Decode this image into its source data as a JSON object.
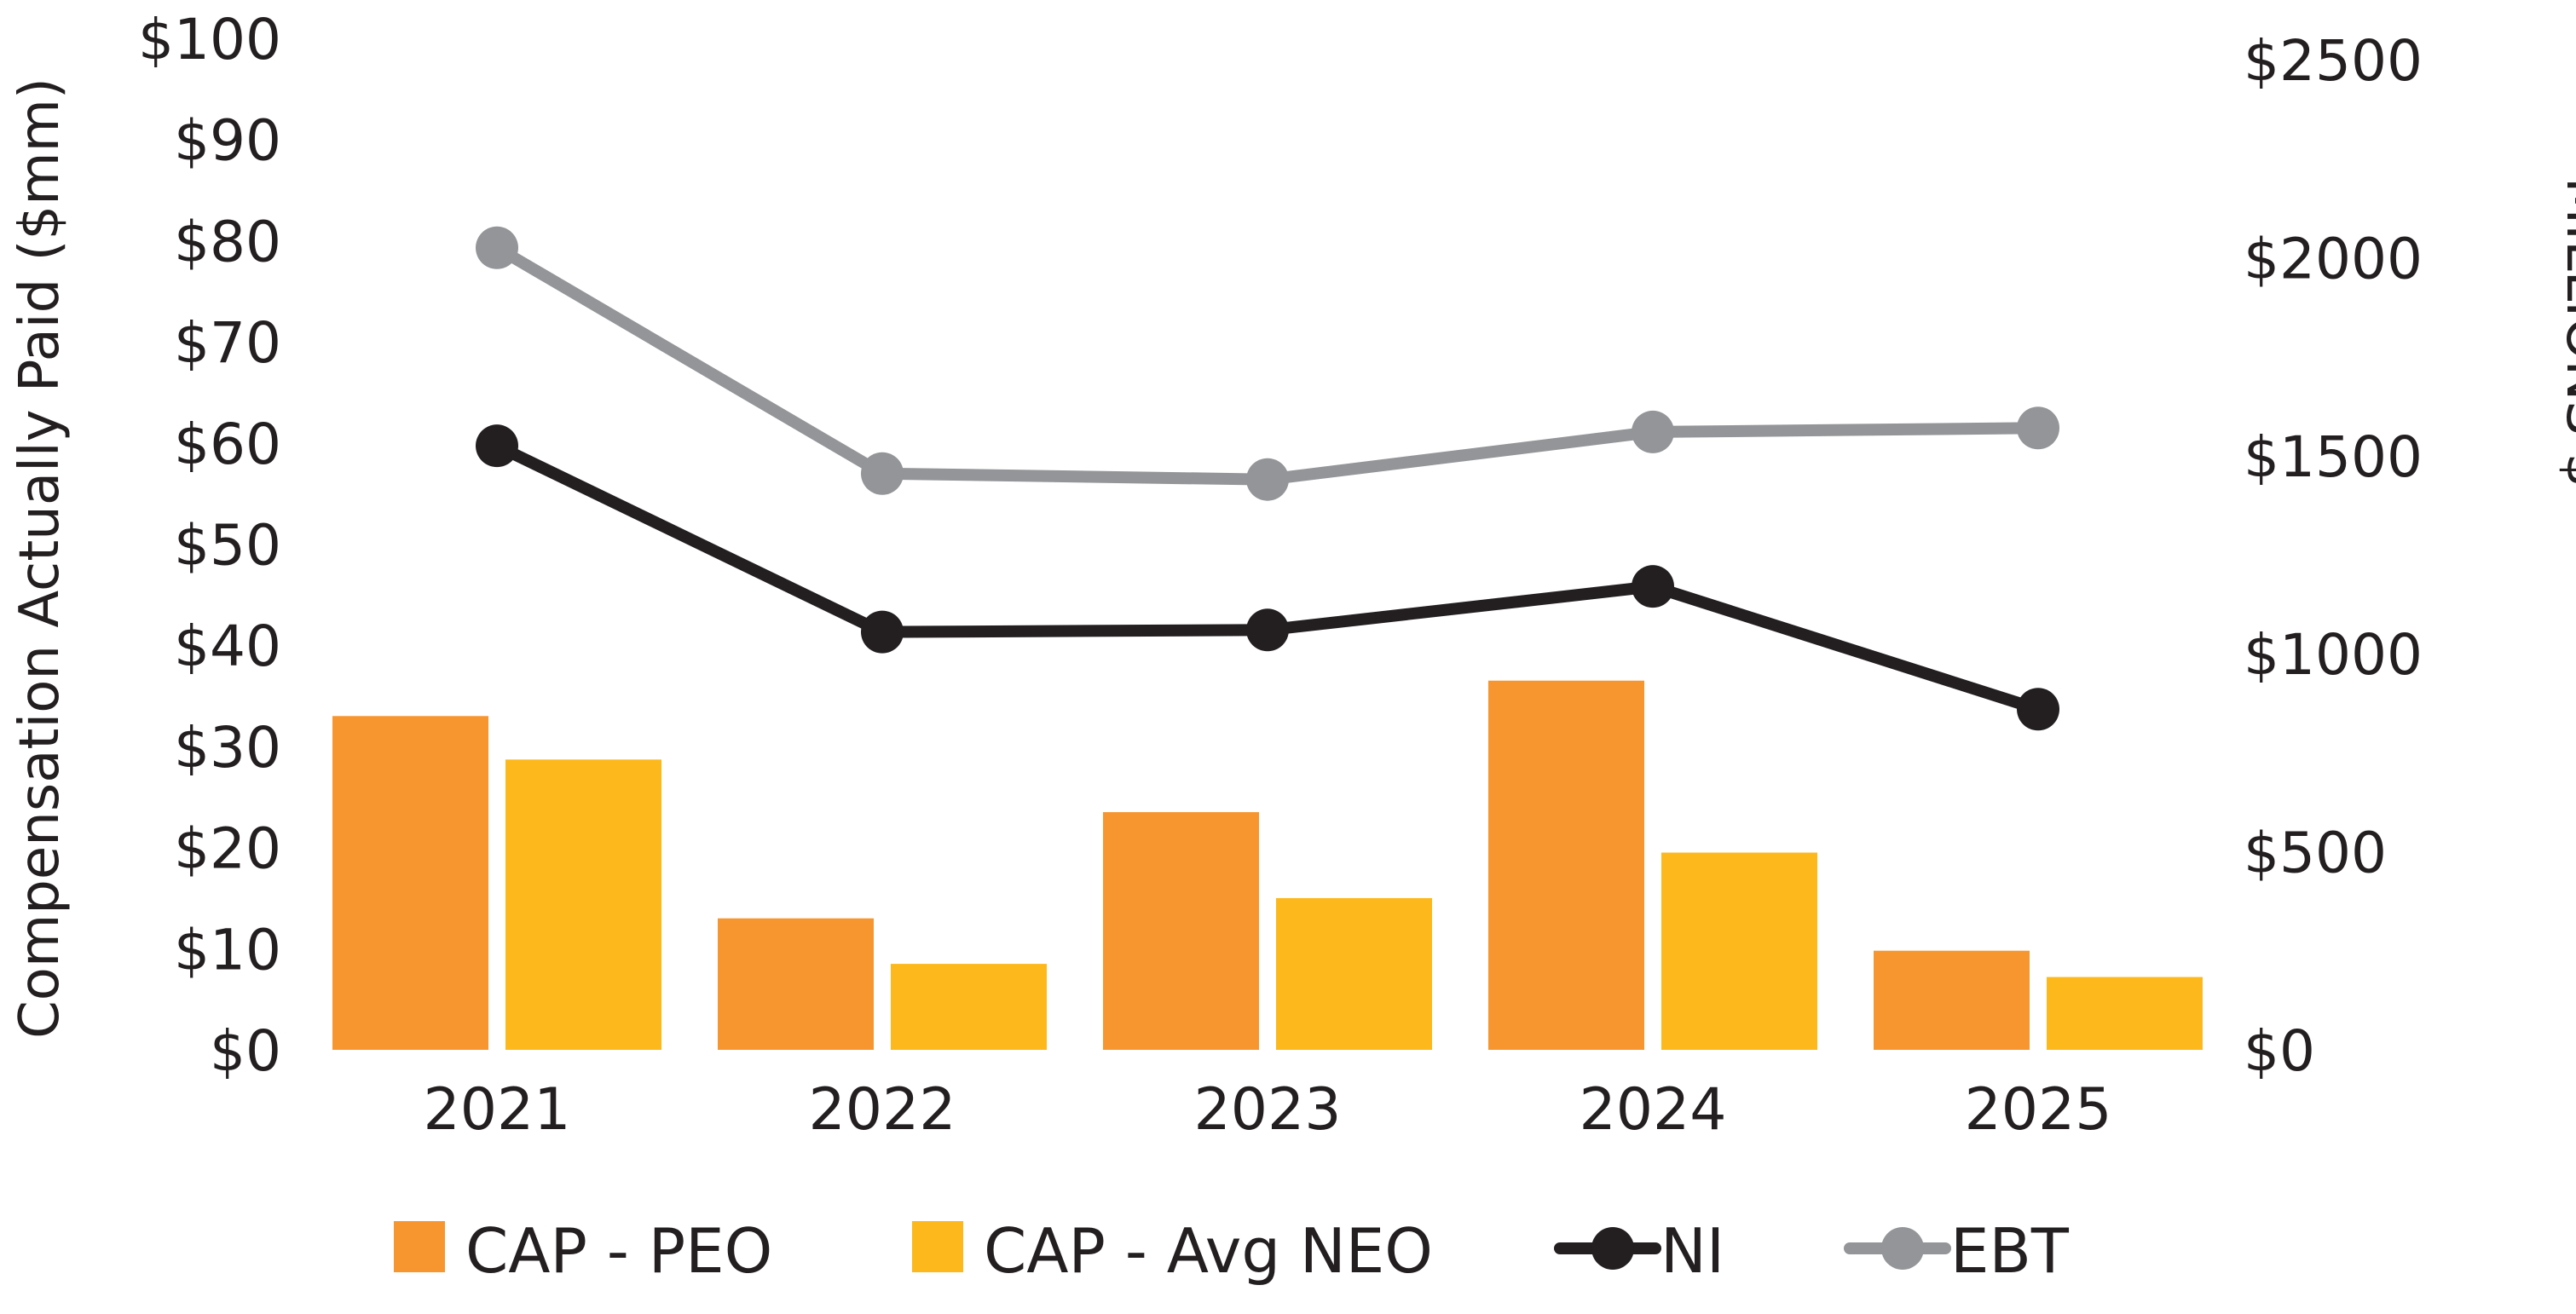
{
  "chart_data": {
    "type": "bar",
    "title": "",
    "categories": [
      "2021",
      "2022",
      "2023",
      "2024",
      "2025"
    ],
    "ylabel_left": "Compensation Actually Paid ($mm)",
    "ylabel_right": "MILLIONS $",
    "ylim_left": [
      0,
      100
    ],
    "ylim_right": [
      0,
      2500
    ],
    "yticks_left": [
      "$0",
      "$10",
      "$20",
      "$30",
      "$40",
      "$50",
      "$60",
      "$70",
      "$80",
      "$90",
      "$100"
    ],
    "yticks_right": [
      "$0",
      "$500",
      "$1000",
      "$1500",
      "$2000",
      "$2500"
    ],
    "grid": false,
    "legend_position": "bottom",
    "bar_series": [
      {
        "name": "CAP - PEO",
        "color": "#f7962f",
        "axis": "left",
        "values": [
          33,
          13,
          23.5,
          36.5,
          9.8
        ]
      },
      {
        "name": "CAP - Avg NEO",
        "color": "#fdb81b",
        "axis": "left",
        "values": [
          28.7,
          8.5,
          15,
          19.5,
          7.2
        ]
      }
    ],
    "line_series": [
      {
        "name": "NI",
        "color": "#231f20",
        "axis": "right",
        "values": [
          1525,
          1055,
          1060,
          1170,
          860
        ]
      },
      {
        "name": "EBT",
        "color": "#939598",
        "axis": "right",
        "values": [
          2025,
          1455,
          1440,
          1560,
          1570
        ]
      }
    ]
  }
}
